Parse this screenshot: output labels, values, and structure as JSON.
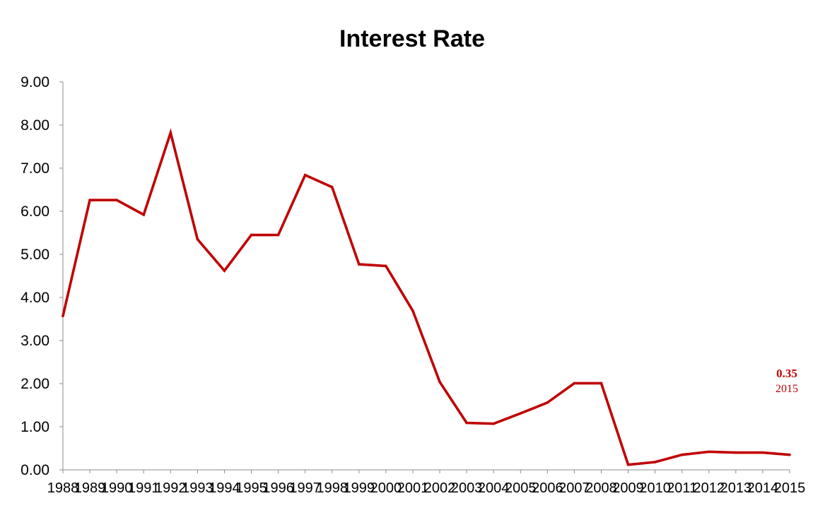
{
  "chart_data": {
    "type": "line",
    "title": "Interest Rate",
    "xlabel": "",
    "ylabel": "",
    "x": [
      "1988",
      "1989",
      "1990",
      "1991",
      "1992",
      "1993",
      "1994",
      "1995",
      "1996",
      "1997",
      "1998",
      "1999",
      "2000",
      "2001",
      "2002",
      "2003",
      "2004",
      "2005",
      "2006",
      "2007",
      "2008",
      "2009",
      "2010",
      "2011",
      "2012",
      "2013",
      "2014",
      "2015"
    ],
    "series": [
      {
        "color": "#c00000",
        "values": [
          3.57,
          6.26,
          6.26,
          5.92,
          7.82,
          5.35,
          4.62,
          5.45,
          5.45,
          6.84,
          6.56,
          4.77,
          4.73,
          3.69,
          2.04,
          1.09,
          1.07,
          1.31,
          1.56,
          2.01,
          2.01,
          0.12,
          0.18,
          0.35,
          0.42,
          0.4,
          0.4,
          0.35
        ]
      }
    ],
    "ylim": [
      0,
      9
    ],
    "yticks": [
      "0.00",
      "1.00",
      "2.00",
      "3.00",
      "4.00",
      "5.00",
      "6.00",
      "7.00",
      "8.00",
      "9.00"
    ],
    "grid": false,
    "annotation": {
      "value": "0.35",
      "label": "2015",
      "color": "#c00000"
    }
  }
}
